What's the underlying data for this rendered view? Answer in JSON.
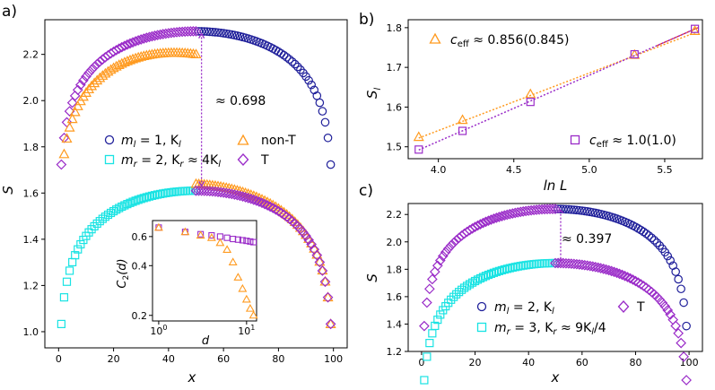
{
  "colors": {
    "navy": "#1f1f9a",
    "cyan": "#19e3e3",
    "orange": "#ff9a1f",
    "purple": "#9a2cc8",
    "red": "#e0201c"
  },
  "chart_data": [
    {
      "id": "a",
      "type": "scatter",
      "panel_label": "a)",
      "xlabel": "x",
      "ylabel": "S",
      "xlim": [
        -5,
        105
      ],
      "ylim": [
        0.93,
        2.35
      ],
      "xticks": [
        "0",
        "20",
        "40",
        "60",
        "80",
        "100"
      ],
      "yticks": [
        "1.0",
        "1.2",
        "1.4",
        "1.6",
        "1.8",
        "2.0",
        "2.2"
      ],
      "legend": [
        {
          "marker": "circle",
          "color": "navy",
          "label": "m_l = 1, K_l"
        },
        {
          "marker": "square",
          "color": "cyan",
          "label": "m_r = 2, K_r ≈ 4K_l"
        },
        {
          "marker": "triangle",
          "color": "orange",
          "label": "non-T"
        },
        {
          "marker": "diamond",
          "color": "purple",
          "label": "T"
        }
      ],
      "annotation": "≈ 0.698",
      "L": 100,
      "series": [
        {
          "name": "m_l = 1, K_l (homogeneous)",
          "marker": "circle",
          "c": 1.0,
          "offset": 1.0,
          "x_range": [
            1,
            99
          ],
          "y_at_x50": 2.3
        },
        {
          "name": "m_r = 2, K_r ≈ 4K_l (homogeneous)",
          "marker": "square",
          "c": 1.0,
          "offset": 0.31,
          "x_range": [
            1,
            50
          ],
          "y_at_x50": 1.61
        },
        {
          "name": "non-T upper",
          "marker": "triangle",
          "x_range": [
            1,
            50
          ],
          "y_at_x40": 2.25,
          "y_at_x50": 2.15
        },
        {
          "name": "non-T lower",
          "marker": "triangle",
          "x_range": [
            50,
            99
          ],
          "y_at_x50": 1.64
        },
        {
          "name": "T",
          "marker": "diamond",
          "x_range": [
            1,
            99
          ],
          "y_at_x50_upper": 2.3,
          "y_at_x50_lower": 1.62
        }
      ]
    },
    {
      "id": "a-inset",
      "type": "scatter",
      "scale": "log-log",
      "xlabel": "d",
      "ylabel": "C_2(d)",
      "xticks": [
        "10^0",
        "10^1"
      ],
      "yticks": [
        "0.2",
        "0.4",
        "0.6"
      ],
      "series": [
        {
          "name": "T",
          "marker": "diamond",
          "x": [
            1,
            2,
            3,
            4,
            5,
            6,
            7,
            8,
            9,
            10,
            11,
            12
          ],
          "y": [
            0.68,
            0.64,
            0.62,
            0.61,
            0.6,
            0.59,
            0.58,
            0.575,
            0.57,
            0.565,
            0.56,
            0.555
          ]
        },
        {
          "name": "non-T",
          "marker": "triangle",
          "x": [
            1,
            2,
            3,
            4,
            5,
            6,
            7,
            8,
            9,
            10,
            11,
            12
          ],
          "y": [
            0.68,
            0.64,
            0.61,
            0.59,
            0.55,
            0.5,
            0.42,
            0.34,
            0.29,
            0.25,
            0.22,
            0.2
          ]
        }
      ]
    },
    {
      "id": "b",
      "type": "scatter",
      "panel_label": "b)",
      "xlabel": "ln L",
      "ylabel": "S_l",
      "xlim": [
        3.8,
        5.75
      ],
      "ylim": [
        1.47,
        1.82
      ],
      "xticks": [
        "4.0",
        "4.5",
        "5.0",
        "5.5"
      ],
      "yticks": [
        "1.5",
        "1.6",
        "1.7",
        "1.8"
      ],
      "series": [
        {
          "name": "non-T",
          "marker": "triangle",
          "x": [
            3.87,
            4.16,
            4.61,
            5.3,
            5.7
          ],
          "y": [
            1.525,
            1.568,
            1.633,
            1.732,
            1.792
          ]
        },
        {
          "name": "T",
          "marker": "square",
          "x": [
            3.87,
            4.16,
            4.61,
            5.3,
            5.7
          ],
          "y": [
            1.493,
            1.54,
            1.613,
            1.733,
            1.797
          ]
        }
      ],
      "fit_lines": [
        {
          "color": "orange",
          "x": [
            3.87,
            5.72
          ],
          "y": [
            1.522,
            1.79
          ]
        },
        {
          "color": "purple",
          "x": [
            3.87,
            5.72
          ],
          "y": [
            1.492,
            1.8
          ]
        }
      ],
      "legend": [
        {
          "marker": "triangle",
          "color": "orange",
          "label": "c_eff ≈ 0.856(0.845)"
        },
        {
          "marker": "square",
          "color": "purple",
          "label": "c_eff ≈ 1.0(1.0)"
        }
      ]
    },
    {
      "id": "c",
      "type": "scatter",
      "panel_label": "c)",
      "xlabel": "x",
      "ylabel": "S",
      "xlim": [
        -5,
        105
      ],
      "ylim": [
        1.2,
        2.28
      ],
      "xticks": [
        "0",
        "20",
        "40",
        "60",
        "80",
        "100"
      ],
      "yticks": [
        "1.2",
        "1.4",
        "1.6",
        "1.8",
        "2.0",
        "2.2"
      ],
      "annotation": "≈ 0.397",
      "L": 100,
      "legend": [
        {
          "marker": "circle",
          "color": "navy",
          "label": "m_l = 2, K_l"
        },
        {
          "marker": "square",
          "color": "cyan",
          "label": "m_r = 3, K_r ≈ 9K_l/4"
        },
        {
          "marker": "diamond",
          "color": "purple",
          "label": "T"
        }
      ],
      "series": [
        {
          "name": "m_l = 2, K_l (homogeneous)",
          "marker": "circle",
          "x_range": [
            1,
            99
          ],
          "y_at_x50": 2.24
        },
        {
          "name": "m_r = 3, K_r ≈ 9K_l/4 (homogeneous)",
          "marker": "square",
          "x_range": [
            1,
            50
          ],
          "y_at_x50": 1.845
        },
        {
          "name": "T",
          "marker": "diamond",
          "x_range": [
            1,
            99
          ],
          "y_at_x50_upper": 2.24,
          "y_at_x50_lower": 1.845
        }
      ]
    }
  ],
  "texts": {
    "a_label": "a)",
    "b_label": "b)",
    "c_label": "c)",
    "a_xlabel": "x",
    "a_ylabel": "S",
    "b_xlabel": "ln L",
    "b_ylabel": "S",
    "b_ylabel_sub": "l",
    "c_xlabel": "x",
    "c_ylabel": "S",
    "a_ann": "≈ 0.698",
    "c_ann": "≈ 0.397",
    "inset_xlabel": "d",
    "inset_ylabel": "C",
    "inset_ylabel_sub": "2",
    "inset_ylabel_arg": "(d)",
    "a_leg1_pre": "m",
    "a_leg1_sub": "l",
    "a_leg1_post": " = 1, K",
    "a_leg1_sub2": "l",
    "a_leg2_pre": "m",
    "a_leg2_sub": "r",
    "a_leg2_post": " = 2, K",
    "a_leg2_sub2": "r",
    "a_leg2_tail": " ≈ 4K",
    "a_leg2_sub3": "l",
    "a_leg3": "non-T",
    "a_leg4": "T",
    "b_leg1_pre": "c",
    "b_leg1_sub": "eff",
    "b_leg1_post": " ≈ 0.856(0.845)",
    "b_leg2_pre": "c",
    "b_leg2_sub": "eff",
    "b_leg2_post": " ≈ 1.0(1.0)",
    "c_leg1_pre": "m",
    "c_leg1_sub": "l",
    "c_leg1_post": " = 2, K",
    "c_leg1_sub2": "l",
    "c_leg2_pre": "m",
    "c_leg2_sub": "r",
    "c_leg2_post": " = 3, K",
    "c_leg2_sub2": "r",
    "c_leg2_tail": " ≈ 9K",
    "c_leg2_sub3": "l",
    "c_leg2_end": "/4",
    "c_leg3": "T"
  }
}
